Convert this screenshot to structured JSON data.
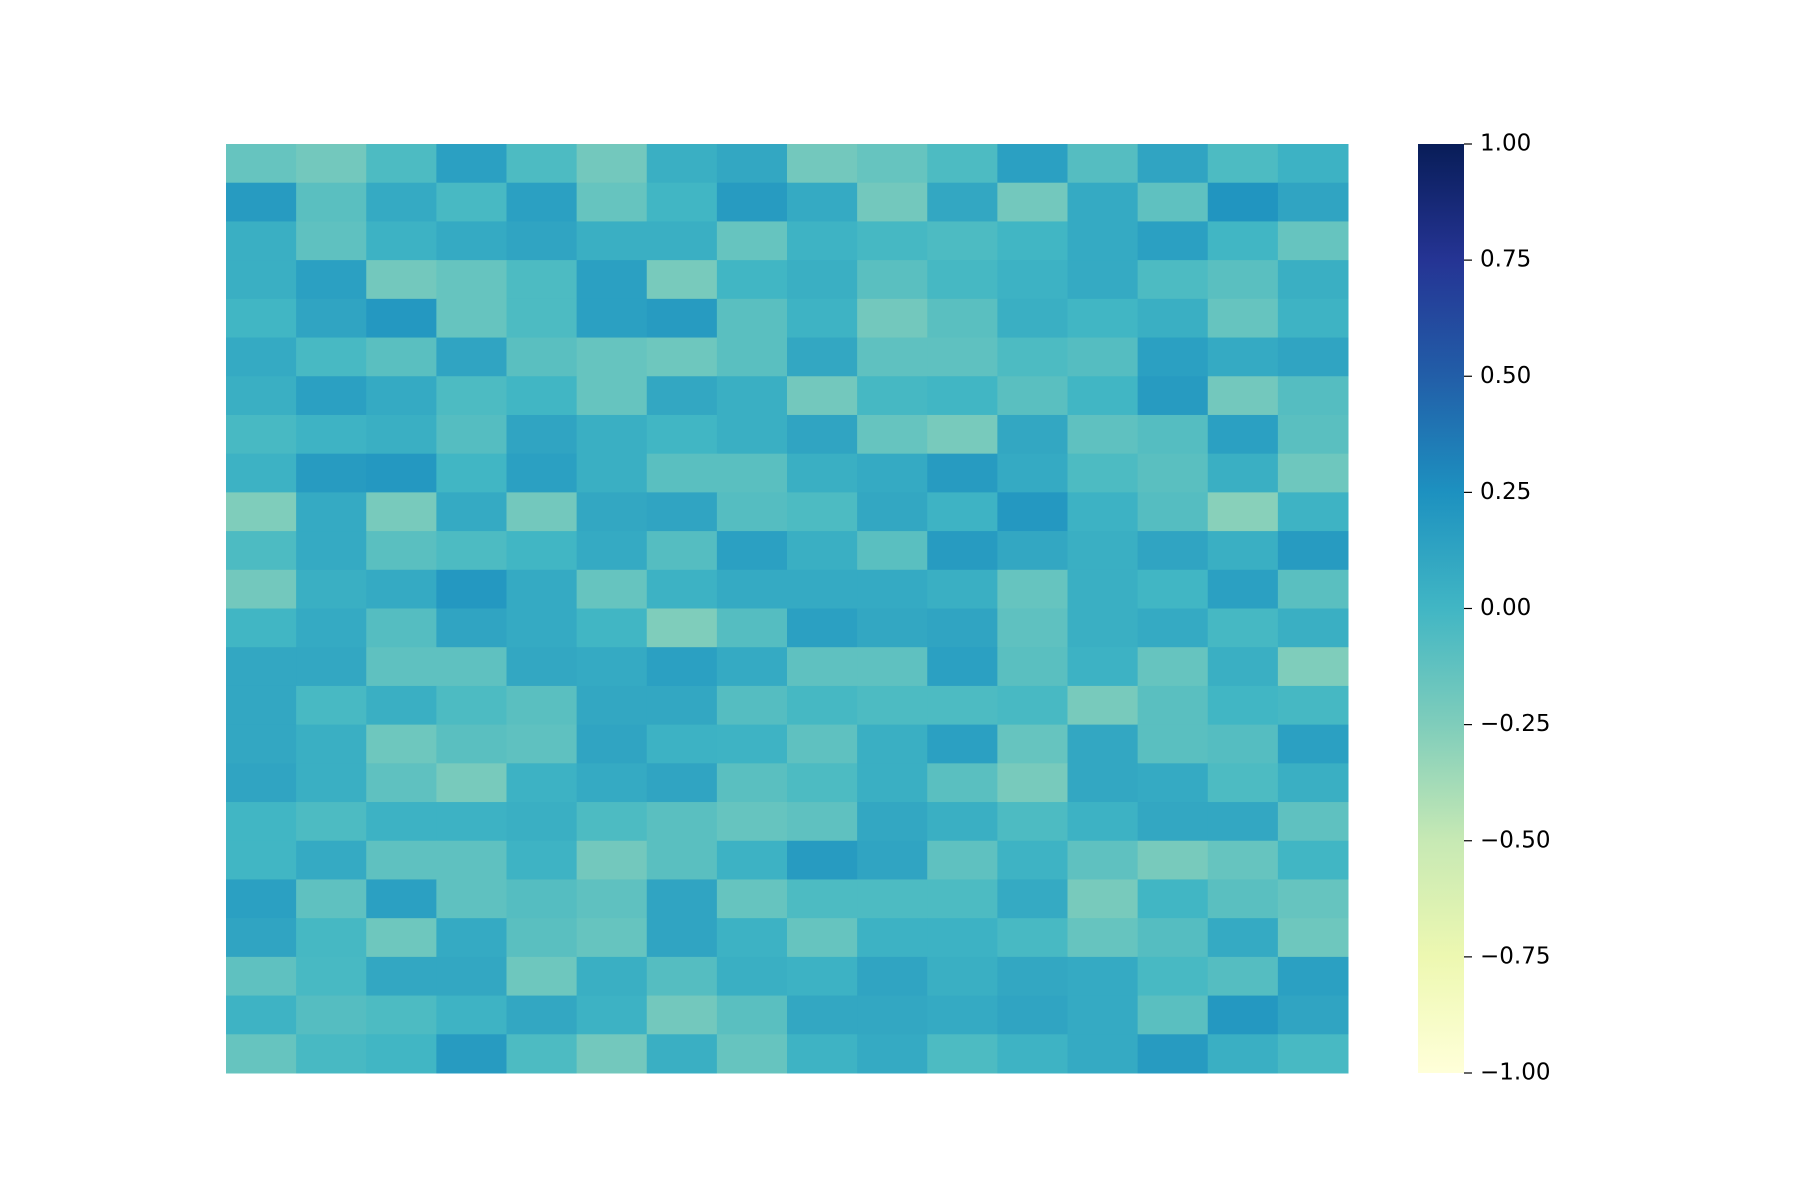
{
  "chart_data": {
    "type": "heatmap",
    "cmap": "YlGnBu",
    "clim": [
      -1,
      1
    ],
    "cticks": [
      {
        "value": -1,
        "label": "−1.00"
      },
      {
        "value": -0.75,
        "label": "−0.75"
      },
      {
        "value": -0.5,
        "label": "−0.50"
      },
      {
        "value": -0.25,
        "label": "−0.25"
      },
      {
        "value": 0,
        "label": "0.00"
      },
      {
        "value": 0.25,
        "label": "0.25"
      },
      {
        "value": 0.5,
        "label": "0.50"
      },
      {
        "value": 0.75,
        "label": "0.75"
      },
      {
        "value": 1,
        "label": "1.00"
      }
    ],
    "values": [
      [
        -0.15,
        -0.2,
        -0.05,
        0.15,
        -0.05,
        -0.2,
        0.05,
        0.1,
        -0.2,
        -0.15,
        -0.05,
        0.15,
        -0.08,
        0.12,
        -0.05,
        0.03
      ],
      [
        0.18,
        -0.1,
        0.08,
        -0.03,
        0.15,
        -0.15,
        0.0,
        0.18,
        0.08,
        -0.2,
        0.1,
        -0.2,
        0.08,
        -0.12,
        0.22,
        0.12
      ],
      [
        0.05,
        -0.12,
        0.03,
        0.08,
        0.12,
        0.05,
        0.05,
        -0.15,
        0.02,
        -0.02,
        -0.05,
        0.0,
        0.08,
        0.15,
        0.0,
        -0.15
      ],
      [
        0.05,
        0.15,
        -0.2,
        -0.15,
        -0.05,
        0.15,
        -0.22,
        0.0,
        0.05,
        -0.1,
        -0.02,
        0.03,
        0.08,
        -0.05,
        -0.1,
        0.05
      ],
      [
        0.0,
        0.12,
        0.2,
        -0.15,
        -0.05,
        0.15,
        0.18,
        -0.1,
        0.02,
        -0.2,
        -0.1,
        0.05,
        0.0,
        0.05,
        -0.15,
        0.02
      ],
      [
        0.08,
        -0.03,
        -0.1,
        0.12,
        -0.1,
        -0.15,
        -0.18,
        -0.1,
        0.1,
        -0.12,
        -0.12,
        -0.05,
        -0.08,
        0.15,
        0.08,
        0.12
      ],
      [
        0.05,
        0.15,
        0.08,
        -0.05,
        0.0,
        -0.15,
        0.1,
        0.05,
        -0.2,
        -0.02,
        0.0,
        -0.1,
        0.0,
        0.18,
        -0.2,
        -0.08
      ],
      [
        -0.03,
        0.02,
        0.05,
        -0.08,
        0.12,
        0.05,
        0.0,
        0.05,
        0.12,
        -0.15,
        -0.22,
        0.1,
        -0.12,
        -0.08,
        0.15,
        -0.1
      ],
      [
        0.03,
        0.18,
        0.2,
        0.0,
        0.15,
        0.05,
        -0.1,
        -0.1,
        0.05,
        0.08,
        0.18,
        0.08,
        -0.05,
        -0.1,
        0.05,
        -0.18
      ],
      [
        -0.25,
        0.08,
        -0.22,
        0.08,
        -0.2,
        0.1,
        0.12,
        -0.08,
        -0.05,
        0.1,
        0.02,
        0.2,
        0.03,
        -0.08,
        -0.28,
        0.02
      ],
      [
        -0.05,
        0.08,
        -0.1,
        -0.05,
        0.0,
        0.08,
        -0.08,
        0.15,
        0.05,
        -0.1,
        0.18,
        0.1,
        0.05,
        0.12,
        0.05,
        0.18
      ],
      [
        -0.2,
        0.05,
        0.08,
        0.2,
        0.08,
        -0.15,
        0.03,
        0.08,
        0.08,
        0.08,
        0.05,
        -0.15,
        0.05,
        0.0,
        0.15,
        -0.1
      ],
      [
        0.0,
        0.08,
        -0.08,
        0.12,
        0.08,
        0.0,
        -0.25,
        -0.08,
        0.15,
        0.1,
        0.12,
        -0.12,
        0.05,
        0.08,
        -0.02,
        0.05
      ],
      [
        0.1,
        0.1,
        -0.12,
        -0.12,
        0.1,
        0.08,
        0.15,
        0.08,
        -0.12,
        -0.12,
        0.15,
        -0.1,
        0.03,
        -0.15,
        0.05,
        -0.25
      ],
      [
        0.1,
        -0.03,
        0.05,
        -0.05,
        -0.1,
        0.1,
        0.1,
        -0.08,
        -0.02,
        -0.05,
        -0.05,
        -0.03,
        -0.22,
        -0.1,
        0.0,
        -0.02
      ],
      [
        0.1,
        0.05,
        -0.18,
        -0.1,
        -0.12,
        0.12,
        0.03,
        0.02,
        -0.12,
        0.05,
        0.15,
        -0.15,
        0.1,
        -0.1,
        -0.08,
        0.15
      ],
      [
        0.12,
        0.05,
        -0.12,
        -0.22,
        0.03,
        0.08,
        0.12,
        -0.1,
        -0.05,
        0.05,
        -0.1,
        -0.22,
        0.1,
        0.08,
        -0.05,
        0.05
      ],
      [
        0.0,
        -0.05,
        0.03,
        0.03,
        0.05,
        -0.05,
        -0.1,
        -0.15,
        -0.12,
        0.1,
        0.05,
        -0.05,
        0.03,
        0.1,
        0.1,
        -0.12
      ],
      [
        0.0,
        0.08,
        -0.12,
        -0.12,
        0.02,
        -0.2,
        -0.1,
        0.03,
        0.18,
        0.12,
        -0.12,
        0.02,
        -0.12,
        -0.22,
        -0.15,
        0.0
      ],
      [
        0.15,
        -0.12,
        0.15,
        -0.12,
        -0.08,
        -0.12,
        0.12,
        -0.15,
        -0.05,
        -0.05,
        -0.05,
        0.08,
        -0.22,
        0.0,
        -0.1,
        -0.15
      ],
      [
        0.12,
        -0.02,
        -0.18,
        0.08,
        -0.1,
        -0.15,
        0.12,
        0.03,
        -0.15,
        0.03,
        0.03,
        -0.03,
        -0.15,
        -0.08,
        0.08,
        -0.18
      ],
      [
        -0.12,
        -0.03,
        0.1,
        0.1,
        -0.18,
        0.05,
        -0.08,
        0.05,
        0.03,
        0.12,
        0.05,
        0.1,
        0.08,
        -0.03,
        -0.08,
        0.15
      ],
      [
        0.02,
        -0.08,
        -0.05,
        0.02,
        0.1,
        0.03,
        -0.2,
        -0.1,
        0.1,
        0.1,
        0.08,
        0.12,
        0.08,
        -0.1,
        0.2,
        0.12
      ],
      [
        -0.15,
        -0.03,
        0.0,
        0.18,
        -0.05,
        -0.2,
        0.05,
        -0.15,
        0.02,
        0.08,
        -0.05,
        0.02,
        0.08,
        0.18,
        0.05,
        -0.03
      ]
    ]
  }
}
